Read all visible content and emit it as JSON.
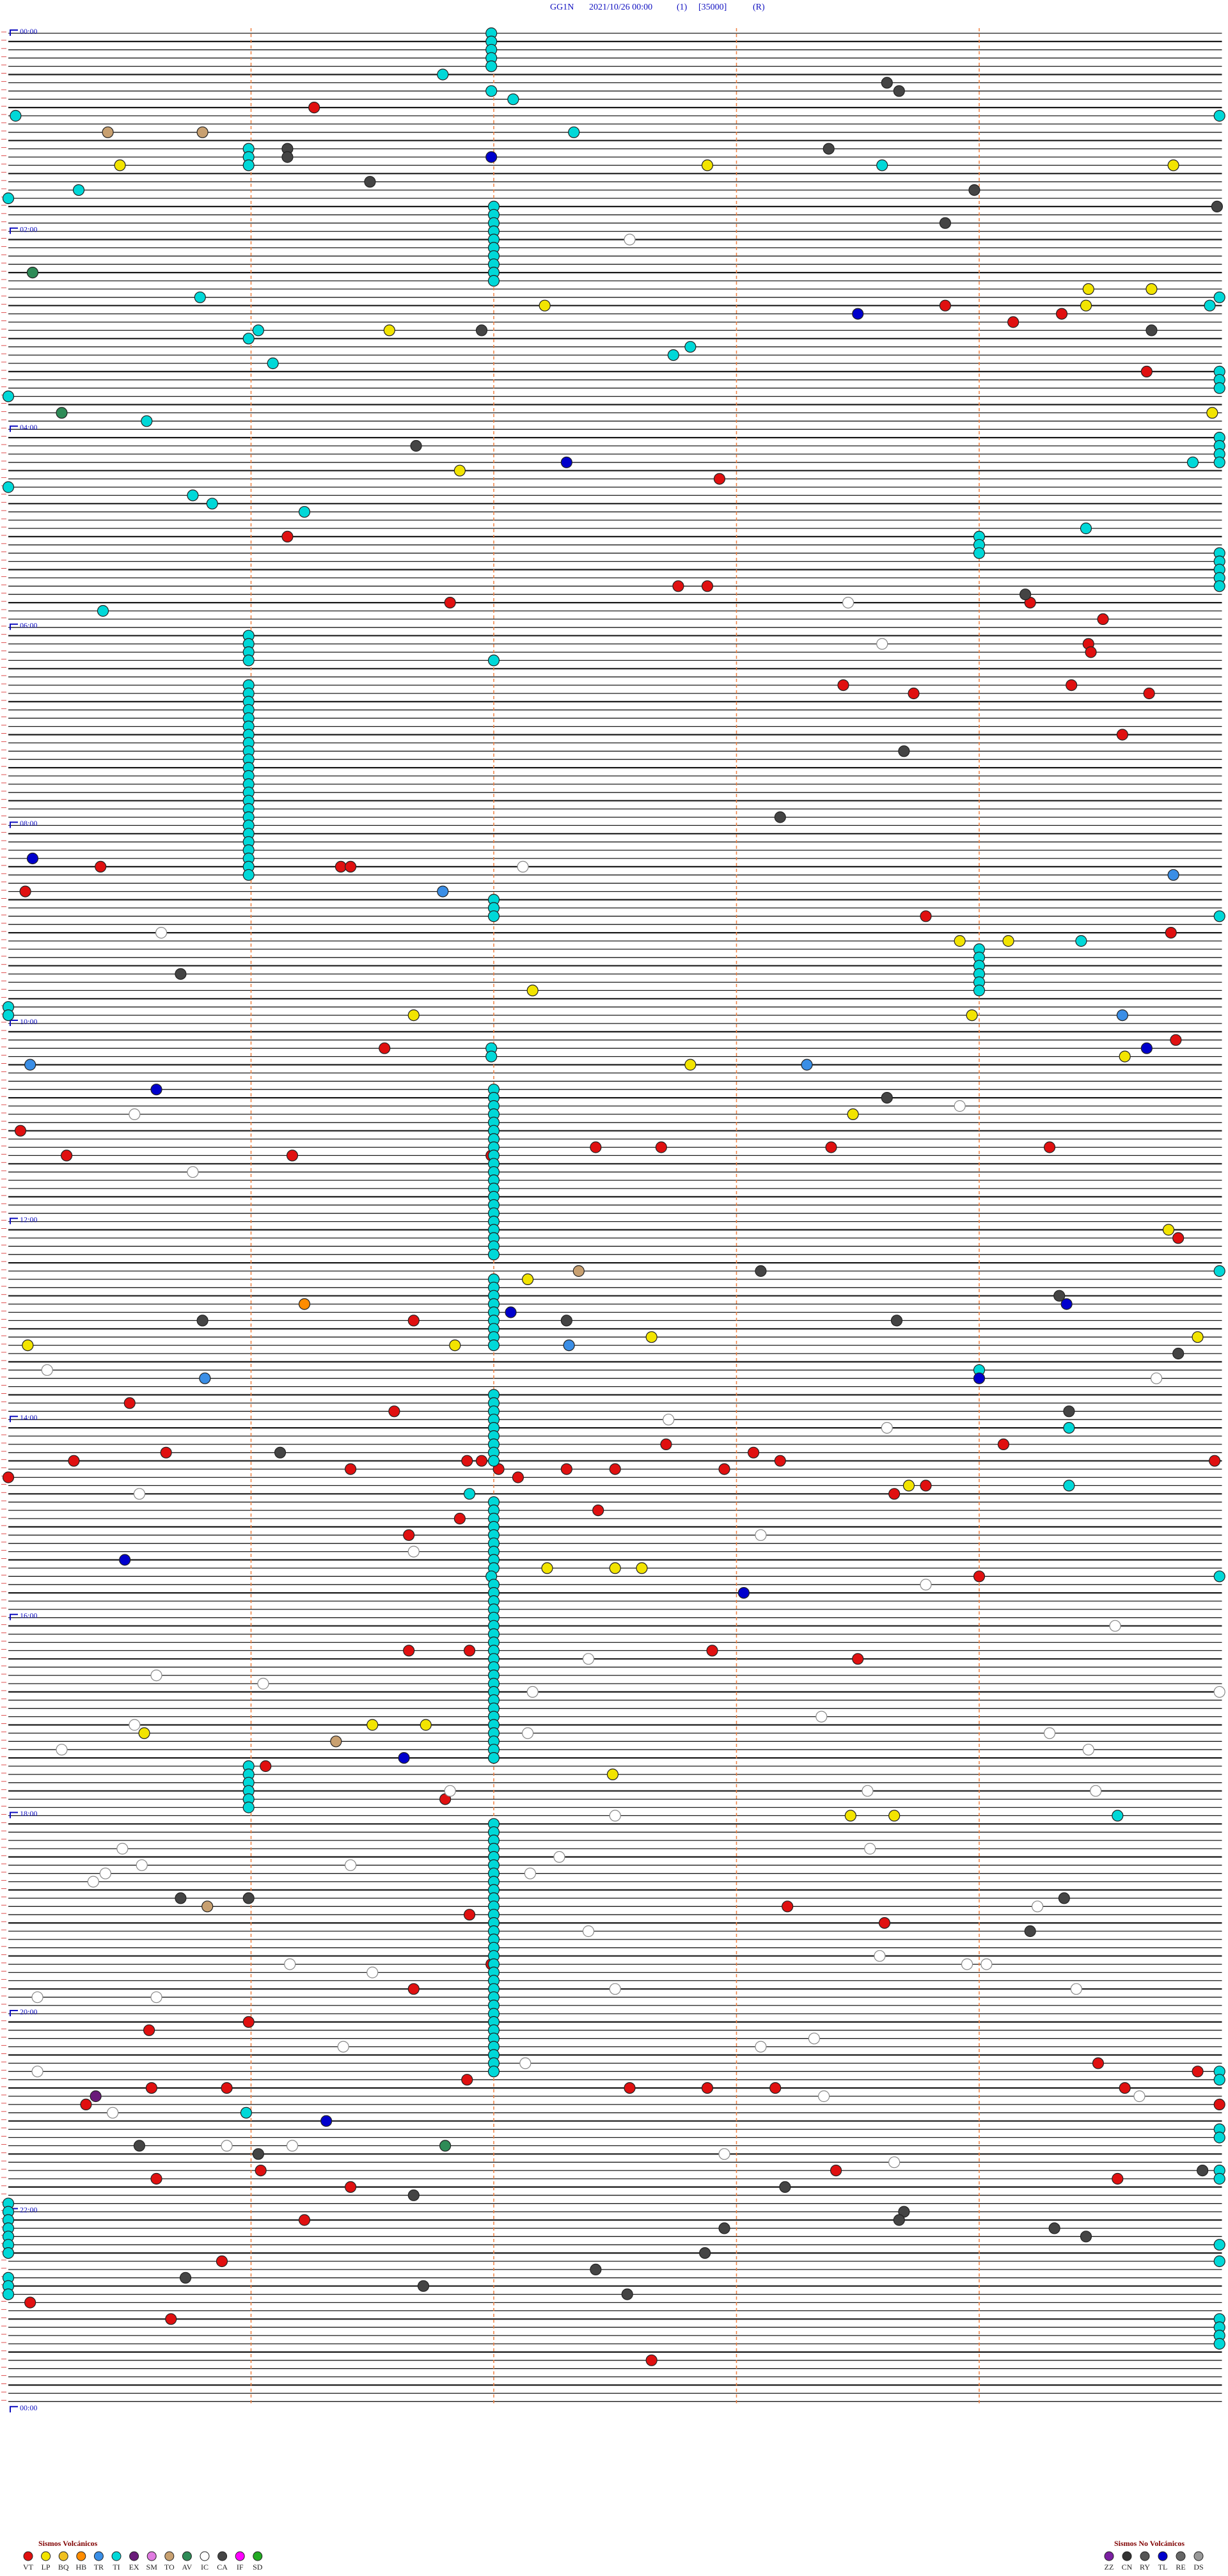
{
  "chart_data": {
    "type": "helicorder",
    "station": "GG1N",
    "date": "2021/10/26 00:00",
    "channel": "(1)",
    "scale": "[35000]",
    "mode": "(R)",
    "xlim": [
      0,
      5
    ],
    "xticks": [
      1,
      2,
      3,
      4
    ],
    "ylim": [
      0,
      1440
    ],
    "yticks": [
      {
        "value": 0,
        "label": "00:00"
      },
      {
        "value": 120,
        "label": "02:00"
      },
      {
        "value": 240,
        "label": "04:00"
      },
      {
        "value": 360,
        "label": "06:00"
      },
      {
        "value": 480,
        "label": "08:00"
      },
      {
        "value": 600,
        "label": "10:00"
      },
      {
        "value": 720,
        "label": "12:00"
      },
      {
        "value": 840,
        "label": "14:00"
      },
      {
        "value": 960,
        "label": "16:00"
      },
      {
        "value": 1080,
        "label": "18:00"
      },
      {
        "value": 1200,
        "label": "20:00"
      },
      {
        "value": 1320,
        "label": "22:00"
      },
      {
        "value": 1440,
        "label": "00:00"
      }
    ],
    "groups": [
      {
        "title": "Sismos Volcánicos",
        "series": [
          {
            "name": "VT",
            "color": "#e01010",
            "values": [
              46.26,
              168.86,
              179.14,
              174.34,
              209.69,
              272.93,
              306.15,
              337.76,
              337.88,
              346.82,
              349.21,
              359.51,
              374.45,
              379.46,
              398.44,
              403.73,
              399.38,
              404.7,
              429.59,
              505.38,
              506.37,
              506.41,
              520.07,
              538.78,
              549.79,
              616.55,
              614.81,
              665.05,
              680.24,
              681.17,
              681.99,
              677.42,
              677.69,
              678.39,
              679.29,
              734.82,
              781.67,
              830.5,
              836.59,
              859.1,
              857.71,
              860.65,
              865.27,
              866.89,
              866.95,
              871.41,
              872.02,
              872.3,
              872.5,
              872.95,
              863.07,
              868.18,
              877.1,
              875.0,
              869.97,
              888.65,
              883.78,
              897.43,
              901.86,
              911.65,
              939.0,
              981.65,
              981.9,
              982.9,
              988.5,
              1051.06,
              1071.8,
              1141.9,
              1138.21,
              1148.61,
              1171.99,
              1186.67,
              1210.58,
              1205.99,
              1234.49,
              1239.9,
              1241.89,
              1245.59,
              1245.9,
              1247.56,
              1247.88,
              1248.16,
              1249.6,
              1255.32,
              1259.99,
              1300.61,
              1296.04,
              1298.41,
              1304.57,
              1306.41,
              1326.22,
              1350.88,
              1375.09,
              1385.67,
              1412.65
            ]
          },
          {
            "name": "LP",
            "color": "#f2e400",
            "values": [
              80.46,
              82.88,
              84.8,
              159.45,
              167.21,
              169.44,
              159.71,
              181.57,
              234.96,
              266.86,
              553.92,
              554.12,
              582.16,
              596.67,
              598.97,
              627.81,
              624.6,
              658.48,
              729.78,
              757.14,
              794.9,
              792.65,
              796.84,
              795.08,
              883.71,
              932.22,
              932.5,
              932.61,
              1026.5,
              1026.72,
              1030.56,
              1057.49,
              1083.47,
              1083.65
            ]
          },
          {
            "name": "BQ",
            "color": "#f0c020",
            "values": []
          },
          {
            "name": "HB",
            "color": "#ff8c00",
            "values": [
              771.22
            ]
          },
          {
            "name": "TR",
            "color": "#3a8ee6",
            "values": [
              514.8,
              521.79,
              625.09,
              628.29,
              599.59,
              797.31,
              815.81
            ]
          },
          {
            "name": "TI",
            "color": "#00d8d8",
            "values": [
              1.99,
              6.99,
              11.99,
              16.99,
              21.99,
              26.79,
              36.99,
              42.08,
              50.03,
              54.99,
              62.33,
              70.99,
              75.99,
              80.99,
              83.6,
              95.29,
              100.0,
              107,
              112,
              117,
              122,
              127,
              132,
              137,
              142,
              147,
              152,
              160.79,
              164.99,
              169.95,
              181.03,
              185.99,
              192.81,
              197.74,
              201.09,
              209.99,
              214.99,
              219.99,
              220.0,
              235.57,
              249.99,
              254.99,
              259.99,
              264.99,
              264.88,
              275.0,
              280.76,
              285.84,
              291.22,
              304.44,
              309,
              314,
              319,
              319.99,
              324.99,
              329.99,
              334.99,
              339.99,
              350.39,
              365.99,
              370.99,
              375.99,
              380.99,
              382.0,
              395.99,
              400.99,
              405.99,
              410.99,
              415.99,
              420.99,
              425.99,
              430.99,
              435.99,
              440.99,
              445.99,
              450.99,
              455.99,
              460.99,
              465.99,
              470.99,
              475.99,
              480.99,
              485.99,
              490.99,
              495.99,
              500.99,
              505.99,
              510.99,
              527,
              532,
              537,
              539.99,
              554.42,
              559,
              564,
              569,
              574,
              579,
              584,
              590,
              595,
              616.99,
              621.99,
              642,
              647,
              652,
              657,
              662,
              667,
              672,
              677,
              682,
              687,
              692,
              697,
              702,
              707,
              712,
              717,
              722,
              727,
              732,
              737,
              742,
              754.99,
              757,
              762,
              767,
              772,
              777,
              782,
              787,
              792,
              797,
              814,
              827,
              832,
              837,
              842,
              847,
              852,
              857,
              862,
              867,
              849.37,
              886.9,
              884.37,
              892,
              897,
              902,
              907,
              912,
              917,
              922,
              927,
              932,
              936.99,
              939.99,
              942,
              947,
              952,
              957,
              962,
              967,
              972,
              977,
              982,
              987,
              992,
              997,
              1002,
              1007,
              1012,
              1017,
              1022,
              1027,
              1032,
              1037,
              1042,
              1047,
              1050.99,
              1055.99,
              1060.99,
              1065.99,
              1070.99,
              1075.99,
              1084.57,
              1087,
              1092,
              1097,
              1102,
              1107,
              1112,
              1117,
              1122,
              1127,
              1132,
              1137,
              1142,
              1147,
              1152,
              1157,
              1162,
              1167,
              1172,
              1177,
              1182,
              1187,
              1192,
              1197,
              1202,
              1207,
              1212,
              1217,
              1222,
              1227,
              1232,
              1237,
              1239.99,
              1244.99,
              1274.99,
              1279.99,
              1260.98,
              1299.99,
              1304.99,
              1315,
              1320,
              1325,
              1330,
              1335,
              1340,
              1345,
              1344.99,
              1354.99,
              1360,
              1365,
              1370,
              1389.99,
              1394.99,
              1399.99,
              1404.99
            ]
          },
          {
            "name": "EX",
            "color": "#6a1b7a",
            "values": [
              1250.36
            ]
          },
          {
            "name": "SM",
            "color": "#e07be0",
            "values": []
          },
          {
            "name": "TO",
            "color": "#c8a070",
            "values": [
              60.41,
              60.8,
              752.35,
              1036.35,
              1135.82
            ]
          },
          {
            "name": "AV",
            "color": "#2e8b57",
            "values": [
              145.1,
              230.22,
              1281.8
            ]
          },
          {
            "name": "IC",
            "color": "#ffffff",
            "values": [
              127.56,
              348.46,
              373.6,
              507.12,
              545.63,
              655.52,
              653.92,
              690.76,
              819.73,
              810.16,
              842.72,
              848.62,
              885.54,
              913.1,
              921.67,
              943.78,
              969.56,
              987.39,
              995.61,
              1001.05,
              1007.16,
              1009.99,
              1023.35,
              1025.52,
              1032.14,
              1034.29,
              1040.22,
              1044.45,
              1066.82,
              1068.54,
              1069.48,
              1082.5,
              1103.55,
              1100.47,
              1110.55,
              1111.41,
              1107.27,
              1115.4,
              1117.15,
              1120.35,
              1152.39,
              1139.24,
              1171.16,
              1176.5,
              1173.95,
              1174.03,
              1168.59,
              1187.5,
              1189.4,
              1190.12,
              1190.61,
              1221.38,
              1218.32,
              1223.1,
              1232.13,
              1235.12,
              1253.36,
              1254.66,
              1260.43,
              1280.9,
              1281.17,
              1287.95,
              1293.65
            ]
          },
          {
            "name": "CA",
            "color": "#444444",
            "values": [
              33.62,
              38.67,
              71.15,
              76.15,
              73.38,
              91.49,
              98.98,
              109.98,
              118.86,
              181.95,
              184.71,
              251.68,
              344.19,
              438.69,
              478.18,
              570.71,
              648.62,
              753.1,
              769.33,
              783.66,
              804.82,
              780.8,
              782.3,
              839.37,
              861.12,
              1130.99,
              1130.71,
              1134.35,
              1154.21,
              1280.54,
              1286.03,
              1299.92,
              1308.2,
              1311.67,
              1323.69,
              1328.67,
              1332.95,
              1334.31,
              1339.44,
              1347.87,
              1357.42,
              1360.73,
              1366.71,
              1372.55
            ]
          },
          {
            "name": "IF",
            "color": "#ff00ff",
            "values": []
          },
          {
            "name": "SD",
            "color": "#22aa22",
            "values": []
          }
        ]
      },
      {
        "title": "Sismos No Volcánicos",
        "series": [
          {
            "name": "ZZ",
            "color": "#7b1fa2",
            "values": []
          },
          {
            "name": "CN",
            "color": "#333333",
            "values": []
          },
          {
            "name": "RY",
            "color": "#555555",
            "values": []
          },
          {
            "name": "TL",
            "color": "#0000cc",
            "values": [
              76.99,
              173.5,
              262.3,
              500.1,
              640.61,
              619.69,
              774.36,
              777.07,
              948.03,
              925.48,
              1266.31,
              1046.63,
              819.0
            ]
          },
          {
            "name": "RE",
            "color": "#666666",
            "values": []
          },
          {
            "name": "DS",
            "color": "#999999",
            "values": []
          }
        ]
      }
    ]
  }
}
